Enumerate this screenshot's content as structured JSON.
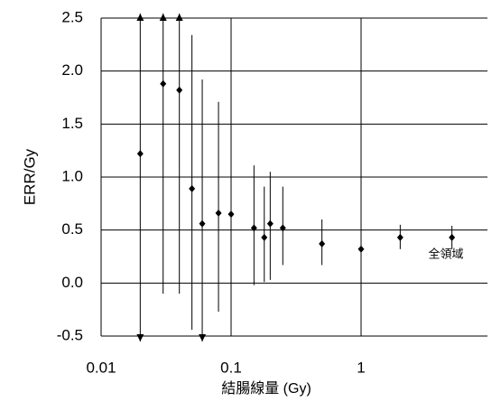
{
  "chart_data": {
    "type": "errorbar",
    "y_label": "ERR/Gy",
    "x_label": "結腸線量 (Gy)",
    "annotation": "全領域",
    "xlim": [
      0.01,
      10
    ],
    "xticks": [
      0.01,
      0.1,
      1
    ],
    "log_x": true,
    "ylim": [
      -0.5,
      2.5
    ],
    "yticks": [
      -0.5,
      {
        "value": 0,
        "label": "0.0"
      },
      0.5,
      {
        "value": 1,
        "label": "1.0"
      },
      1.5,
      {
        "value": 2,
        "label": "2.0"
      },
      2.5
    ],
    "grid": true,
    "color": "#000000",
    "x": [
      0.02,
      0.03,
      0.04,
      0.05,
      0.06,
      0.08,
      0.1,
      0.15,
      0.18,
      0.2,
      0.25,
      0.5,
      1,
      2,
      5
    ],
    "values": [
      1.22,
      1.88,
      1.82,
      0.89,
      0.56,
      0.66,
      0.65,
      0.52,
      0.43,
      0.56,
      0.52,
      0.37,
      0.32,
      0.43,
      0.43
    ],
    "upper": [
      null,
      null,
      null,
      2.34,
      1.92,
      1.71,
      1.5,
      1.11,
      0.91,
      1.05,
      0.91,
      0.6,
      0.47,
      0.55,
      0.54
    ],
    "lower": [
      null,
      -0.1,
      -0.1,
      -0.44,
      null,
      -0.27,
      -0.1,
      -0.02,
      0.01,
      0.03,
      0.17,
      0.17,
      0.2,
      0.32,
      0.32
    ]
  }
}
